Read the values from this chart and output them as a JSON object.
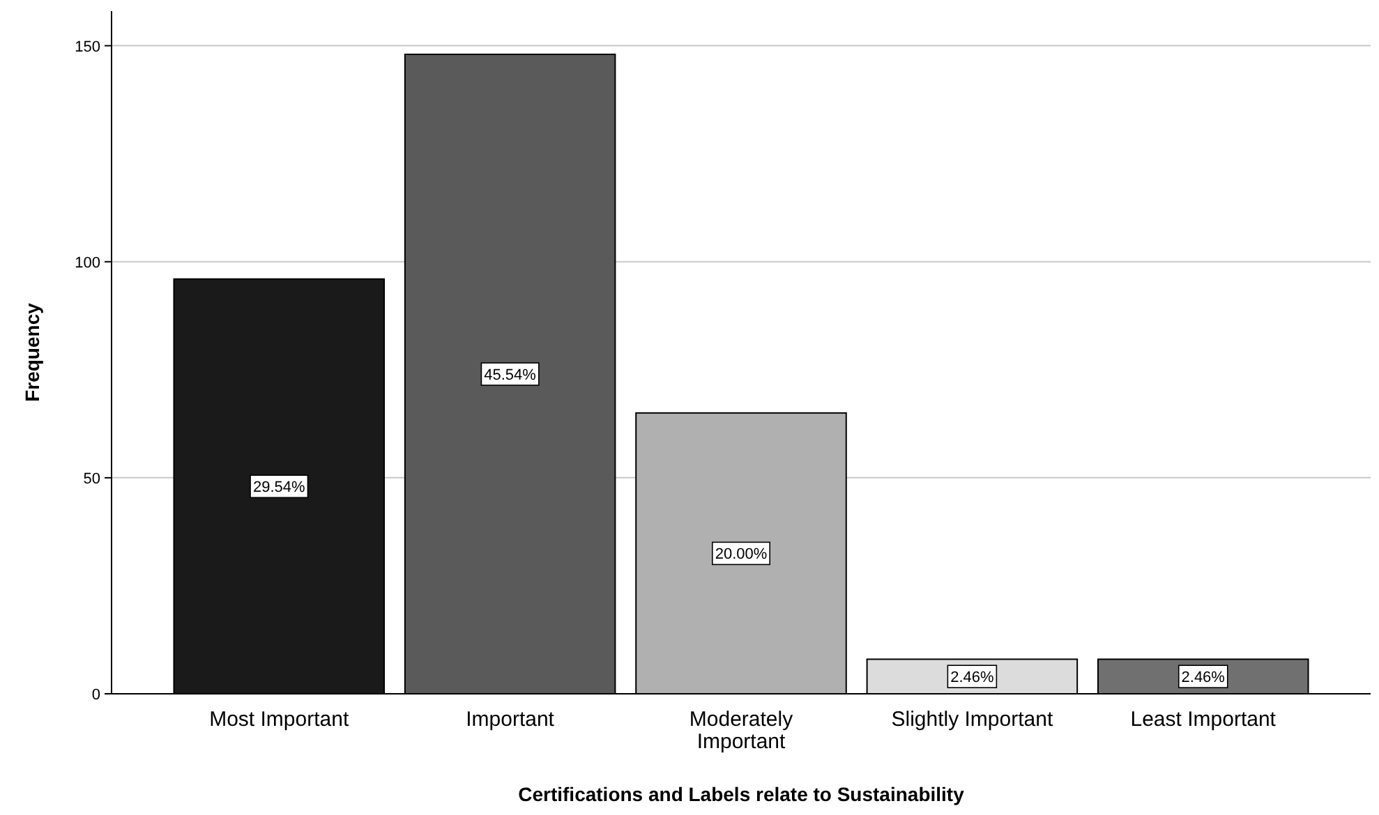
{
  "chart_data": {
    "type": "bar",
    "xlabel": "Certifications and Labels relate to Sustainability",
    "ylabel": "Frequency",
    "categories": [
      "Most Important",
      "Important",
      "Moderately Important",
      "Slightly Important",
      "Least Important"
    ],
    "values": [
      96,
      148,
      65,
      8,
      8
    ],
    "annotations": [
      {
        "text": "29.54%",
        "x": "Most Important",
        "y": 48
      },
      {
        "text": "45.54%",
        "x": "Important",
        "y": 74
      },
      {
        "text": "20.00%",
        "x": "Moderately Important",
        "y": 32.5
      },
      {
        "text": "2.46%",
        "x": "Slightly Important",
        "y": 4
      },
      {
        "text": "2.46%",
        "x": "Least Important",
        "y": 4
      }
    ],
    "colors": [
      "#1a1a1a",
      "#5a5a5a",
      "#b0b0b0",
      "#dcdcdc",
      "#707070"
    ],
    "ylim": [
      0,
      158
    ],
    "yticks": [
      0,
      50,
      100,
      150
    ],
    "grid": "y"
  }
}
